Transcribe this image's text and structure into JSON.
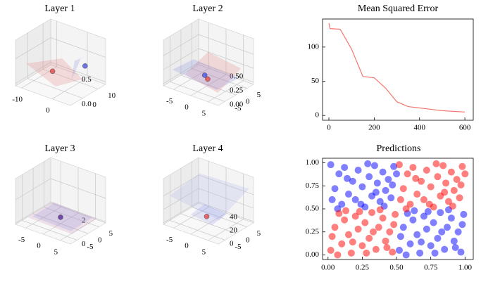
{
  "chart_data": [
    {
      "type": "surface3d",
      "title": "Layer 1",
      "xlim": [
        -12,
        6
      ],
      "xticks": [
        -10,
        0
      ],
      "ylim": [
        -8,
        15
      ],
      "yticks": [
        0,
        10
      ],
      "zlim": [
        -0.05,
        0.88
      ],
      "zticks": [
        {
          "value": 0,
          "label": "0.0"
        },
        {
          "value": 0.5,
          "label": "0.5"
        }
      ]
    },
    {
      "type": "surface3d",
      "title": "Layer 2",
      "xlim": [
        -8,
        8
      ],
      "xticks": [
        -5,
        0,
        5
      ],
      "ylim": [
        -8,
        8
      ],
      "yticks": [
        -5,
        0,
        5
      ],
      "zlim": [
        -0.04,
        0.78
      ],
      "zticks": [
        {
          "value": 0,
          "label": "0.00"
        },
        {
          "value": 0.25,
          "label": "0.25"
        },
        {
          "value": 0.5,
          "label": "0.50"
        }
      ]
    },
    {
      "type": "line",
      "title": "Mean Squared Error",
      "color": "#f4776f",
      "x": [
        0,
        5,
        50,
        100,
        150,
        200,
        250,
        300,
        350,
        400,
        450,
        500,
        550,
        600
      ],
      "values": [
        135,
        127,
        126,
        97,
        57,
        55,
        40,
        20,
        13,
        11,
        9,
        7,
        6,
        5
      ],
      "xlim": [
        -28,
        637
      ],
      "xticks": [
        0,
        200,
        400,
        600
      ],
      "ylim": [
        -7,
        141
      ],
      "yticks": [
        0,
        50,
        100
      ]
    },
    {
      "type": "surface3d",
      "title": "Layer 3",
      "xlim": [
        -8,
        8
      ],
      "xticks": [
        -5,
        0,
        5
      ],
      "ylim": [
        -8,
        8
      ],
      "yticks": [
        -5,
        0,
        5
      ],
      "zlim": [
        -0.1,
        3.8
      ],
      "zticks": [
        0,
        2
      ]
    },
    {
      "type": "surface3d",
      "title": "Layer 4",
      "xlim": [
        -8,
        8
      ],
      "xticks": [
        -5,
        0,
        5
      ],
      "ylim": [
        -8,
        8
      ],
      "yticks": [
        -5,
        0,
        5
      ],
      "zlim": [
        -2,
        66
      ],
      "zticks": [
        0,
        20,
        40
      ]
    },
    {
      "type": "scatter",
      "title": "Predictions",
      "xlim": [
        -0.04,
        1.06
      ],
      "xticks": [
        {
          "value": 0,
          "label": "0.00"
        },
        {
          "value": 0.25,
          "label": "0.25"
        },
        {
          "value": 0.5,
          "label": "0.50"
        },
        {
          "value": 0.75,
          "label": "0.75"
        },
        {
          "value": 1,
          "label": "1.00"
        }
      ],
      "ylim": [
        -0.05,
        1.05
      ],
      "yticks": [
        {
          "value": 0,
          "label": "0.00"
        },
        {
          "value": 0.25,
          "label": "0.25"
        },
        {
          "value": 0.5,
          "label": "0.50"
        },
        {
          "value": 0.75,
          "label": "0.75"
        },
        {
          "value": 1,
          "label": "1.00"
        }
      ],
      "series": [
        {
          "color": "#0000ff",
          "x": [
            0.02,
            0.05,
            0.08,
            0.1,
            0.12,
            0.15,
            0.18,
            0.2,
            0.22,
            0.25,
            0.27,
            0.3,
            0.32,
            0.34,
            0.36,
            0.38,
            0.4,
            0.42,
            0.44,
            0.46,
            0.48,
            0.03,
            0.07,
            0.14,
            0.24,
            0.29,
            0.35,
            0.41,
            0.47,
            0.5,
            0.52,
            0.55,
            0.58,
            0.6,
            0.62,
            0.65,
            0.67,
            0.7,
            0.72,
            0.75,
            0.77,
            0.8,
            0.82,
            0.85,
            0.87,
            0.9,
            0.92,
            0.95,
            0.97,
            0.99,
            0.53,
            0.57,
            0.63,
            0.68,
            0.73,
            0.78,
            0.83,
            0.88,
            0.93,
            0.98
          ],
          "y": [
            0.98,
            0.72,
            0.88,
            0.55,
            0.95,
            0.66,
            0.8,
            0.6,
            0.92,
            0.74,
            0.52,
            0.85,
            0.64,
            0.97,
            0.78,
            0.58,
            0.9,
            0.7,
            0.82,
            0.62,
            0.96,
            0.6,
            0.5,
            0.83,
            0.55,
            0.99,
            0.68,
            0.53,
            0.76,
            0.88,
            0.05,
            0.3,
            0.45,
            0.12,
            0.38,
            0.22,
            0.02,
            0.42,
            0.28,
            0.1,
            0.35,
            0.18,
            0.46,
            0.06,
            0.3,
            0.4,
            0.15,
            0.25,
            0.03,
            0.44,
            0.2,
            0.0,
            0.48,
            0.14,
            0.47,
            0.02,
            0.25,
            0.49,
            0.08,
            0.33
          ]
        },
        {
          "color": "#ff0000",
          "x": [
            0.52,
            0.55,
            0.58,
            0.6,
            0.62,
            0.65,
            0.68,
            0.7,
            0.72,
            0.75,
            0.77,
            0.8,
            0.82,
            0.84,
            0.86,
            0.88,
            0.9,
            0.92,
            0.94,
            0.96,
            0.98,
            0.53,
            0.57,
            0.64,
            0.74,
            0.79,
            0.85,
            0.91,
            0.97,
            1.0,
            0.02,
            0.05,
            0.08,
            0.1,
            0.12,
            0.15,
            0.17,
            0.2,
            0.22,
            0.25,
            0.27,
            0.3,
            0.32,
            0.35,
            0.37,
            0.4,
            0.42,
            0.45,
            0.47,
            0.49,
            0.03,
            0.07,
            0.13,
            0.18,
            0.23,
            0.28,
            0.33,
            0.38,
            0.43,
            0.48
          ],
          "y": [
            0.98,
            0.72,
            0.88,
            0.55,
            0.95,
            0.66,
            0.8,
            0.6,
            0.92,
            0.74,
            0.52,
            0.85,
            0.64,
            0.97,
            0.78,
            0.58,
            0.9,
            0.7,
            0.82,
            0.62,
            0.96,
            0.6,
            0.5,
            0.83,
            0.55,
            0.99,
            0.68,
            0.53,
            0.76,
            0.88,
            0.05,
            0.3,
            0.45,
            0.12,
            0.38,
            0.22,
            0.02,
            0.42,
            0.28,
            0.1,
            0.35,
            0.18,
            0.46,
            0.06,
            0.3,
            0.4,
            0.15,
            0.25,
            0.03,
            0.44,
            0.2,
            0.0,
            0.48,
            0.14,
            0.47,
            0.02,
            0.25,
            0.49,
            0.08,
            0.33
          ]
        }
      ]
    }
  ]
}
